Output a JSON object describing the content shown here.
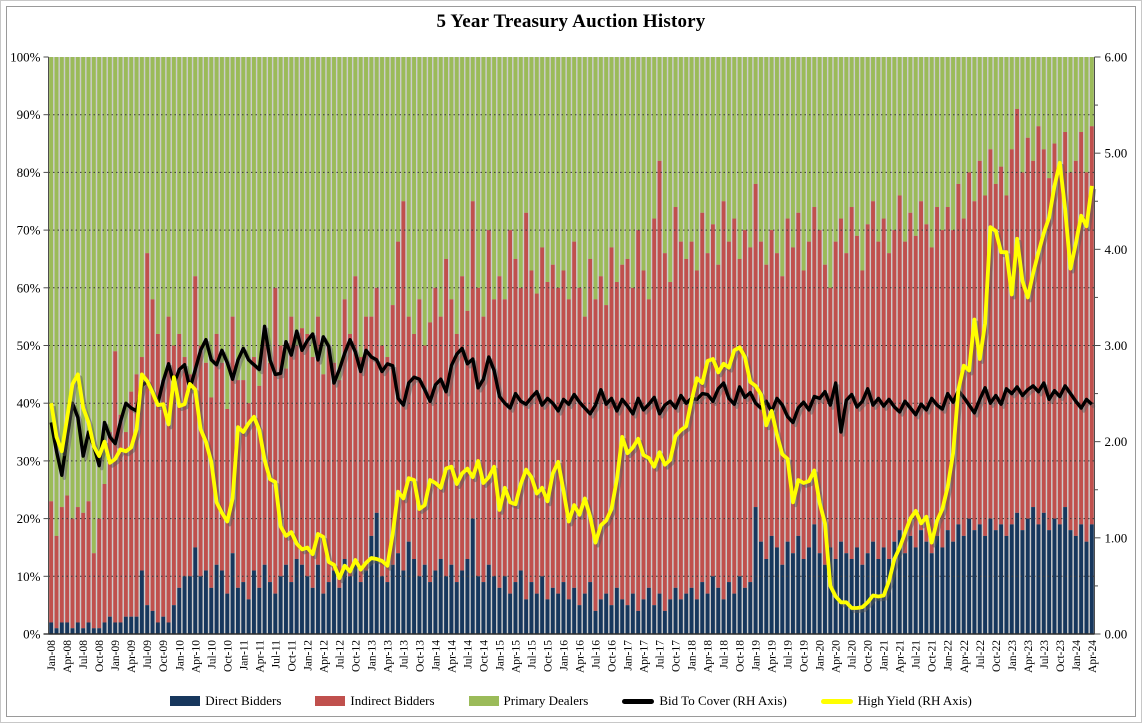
{
  "title": "5 Year Treasury Auction History",
  "legend": {
    "items": [
      {
        "label": "Direct Bidders",
        "swatch": "bar",
        "color": "#17375D"
      },
      {
        "label": "Indirect Bidders",
        "swatch": "bar",
        "color": "#C0504D"
      },
      {
        "label": "Primary Dealers",
        "swatch": "bar",
        "color": "#9BBB59"
      },
      {
        "label": "Bid To Cover (RH Axis)",
        "swatch": "line",
        "color": "#000000"
      },
      {
        "label": "High Yield (RH Axis)",
        "swatch": "line",
        "color": "#FFFF00"
      }
    ]
  },
  "chart_data": {
    "type": "combo: stacked-bar (left axis, % of auction) + line (right axis)",
    "x_start": "Jan-08",
    "x_end": "Apr-24",
    "freq": "monthly",
    "n_points": 196,
    "grid": "horizontal dotted lines every 10%",
    "legend_position": "bottom",
    "plot_bg": "#CDCDCD",
    "left_axis": {
      "min": 0,
      "max": 100,
      "ticks": [
        "0%",
        "10%",
        "20%",
        "30%",
        "40%",
        "50%",
        "60%",
        "70%",
        "80%",
        "90%",
        "100%"
      ]
    },
    "right_axis": {
      "min": 0,
      "max": 6,
      "ticks": [
        "0.00",
        "1.00",
        "2.00",
        "3.00",
        "4.00",
        "5.00",
        "6.00"
      ]
    },
    "x_tick_labels": [
      "Jan-08",
      "Apr-08",
      "Jul-08",
      "Oct-08",
      "Jan-09",
      "Apr-09",
      "Jul-09",
      "Oct-09",
      "Jan-10",
      "Apr-10",
      "Jul-10",
      "Oct-10",
      "Jan-11",
      "Apr-11",
      "Jul-11",
      "Oct-11",
      "Jan-12",
      "Apr-12",
      "Jul-12",
      "Oct-12",
      "Jan-13",
      "Apr-13",
      "Jul-13",
      "Oct-13",
      "Jan-14",
      "Apr-14",
      "Jul-14",
      "Oct-14",
      "Jan-15",
      "Apr-15",
      "Jul-15",
      "Oct-15",
      "Jan-16",
      "Apr-16",
      "Jul-16",
      "Oct-16",
      "Jan-17",
      "Apr-17",
      "Jul-17",
      "Oct-17",
      "Jan-18",
      "Apr-18",
      "Jul-18",
      "Oct-18",
      "Jan-19",
      "Apr-19",
      "Jul-19",
      "Oct-19",
      "Jan-20",
      "Apr-20",
      "Jul-20",
      "Oct-20",
      "Jan-21",
      "Apr-21",
      "Jul-21",
      "Oct-21",
      "Jan-22",
      "Apr-22",
      "Jul-22",
      "Oct-22",
      "Jan-23",
      "Apr-23",
      "Jul-23",
      "Oct-23",
      "Jan-24",
      "Apr-24"
    ],
    "x_tick_every_n_months": 3,
    "series": [
      {
        "name": "Direct Bidders",
        "type": "bar",
        "axis": "left",
        "unit": "%",
        "color": "#17375D",
        "values": [
          2,
          1,
          2,
          2,
          1,
          2,
          1,
          2,
          1,
          1,
          2,
          3,
          2,
          2,
          3,
          3,
          3,
          11,
          5,
          4,
          2,
          3,
          2,
          5,
          8,
          10,
          10,
          15,
          10,
          11,
          8,
          12,
          11,
          7,
          14,
          8,
          9,
          6,
          11,
          8,
          12,
          9,
          7,
          10,
          12,
          9,
          13,
          12,
          10,
          8,
          12,
          7,
          9,
          11,
          8,
          13,
          10,
          12,
          9,
          11,
          17,
          21,
          10,
          9,
          12,
          14,
          11,
          16,
          13,
          10,
          12,
          9,
          11,
          13,
          10,
          12,
          9,
          11,
          13,
          20,
          10,
          9,
          12,
          10,
          8,
          10,
          7,
          9,
          11,
          6,
          9,
          7,
          10,
          6,
          8,
          7,
          9,
          6,
          8,
          5,
          7,
          9,
          4,
          6,
          7,
          5,
          8,
          6,
          5,
          7,
          4,
          6,
          8,
          5,
          7,
          4,
          6,
          8,
          6,
          7,
          8,
          6,
          9,
          7,
          10,
          8,
          6,
          9,
          7,
          10,
          8,
          9,
          22,
          16,
          13,
          17,
          15,
          12,
          16,
          14,
          17,
          13,
          15,
          19,
          14,
          12,
          15,
          13,
          16,
          14,
          13,
          15,
          12,
          14,
          16,
          13,
          15,
          13,
          16,
          18,
          14,
          17,
          15,
          18,
          16,
          14,
          17,
          15,
          18,
          16,
          19,
          17,
          20,
          18,
          19,
          17,
          20,
          18,
          19,
          17,
          19,
          21,
          18,
          20,
          22,
          19,
          21,
          18,
          20,
          19,
          22,
          18,
          17,
          19,
          16,
          19
        ]
      },
      {
        "name": "Indirect Bidders",
        "type": "bar",
        "axis": "left",
        "unit": "%",
        "color": "#C0504D",
        "values": [
          21,
          16,
          20,
          22,
          19,
          20,
          20,
          21,
          13,
          19,
          24,
          32,
          47,
          36,
          32,
          39,
          42,
          37,
          61,
          54,
          50,
          41,
          53,
          45,
          44,
          38,
          35,
          47,
          40,
          36,
          33,
          40,
          36,
          32,
          41,
          36,
          35,
          34,
          37,
          35,
          41,
          38,
          53,
          40,
          34,
          46,
          37,
          41,
          42,
          40,
          43,
          38,
          41,
          36,
          36,
          45,
          42,
          50,
          39,
          44,
          38,
          39,
          40,
          39,
          45,
          54,
          64,
          39,
          39,
          48,
          38,
          45,
          49,
          42,
          55,
          46,
          43,
          51,
          43,
          55,
          50,
          46,
          58,
          48,
          54,
          48,
          63,
          56,
          49,
          67,
          54,
          52,
          57,
          55,
          56,
          53,
          54,
          52,
          60,
          55,
          48,
          56,
          54,
          56,
          50,
          62,
          53,
          58,
          60,
          53,
          66,
          57,
          50,
          67,
          75,
          62,
          55,
          66,
          62,
          58,
          60,
          57,
          64,
          59,
          61,
          56,
          69,
          59,
          65,
          55,
          62,
          58,
          56,
          52,
          51,
          53,
          51,
          50,
          56,
          53,
          56,
          50,
          53,
          55,
          56,
          52,
          45,
          55,
          56,
          52,
          61,
          54,
          51,
          57,
          59,
          55,
          57,
          53,
          54,
          58,
          54,
          56,
          54,
          57,
          55,
          53,
          57,
          55,
          56,
          54,
          59,
          55,
          60,
          57,
          63,
          59,
          64,
          60,
          62,
          59,
          65,
          70,
          62,
          66,
          60,
          69,
          63,
          61,
          65,
          62,
          65,
          62,
          65,
          68,
          64,
          69
        ]
      },
      {
        "name": "Primary Dealers",
        "type": "bar",
        "axis": "left",
        "unit": "%",
        "color": "#9BBB59",
        "values_rule": "100 - Direct Bidders - Indirect Bidders (stack fills to 100%)"
      },
      {
        "name": "Bid To Cover (RH Axis)",
        "type": "line",
        "axis": "right",
        "color": "#000000",
        "values": [
          2.2,
          1.9,
          1.65,
          2.05,
          2.4,
          2.25,
          1.85,
          2.1,
          1.95,
          1.75,
          2.2,
          2.05,
          1.98,
          2.21,
          2.4,
          2.35,
          2.32,
          2.58,
          2.63,
          2.51,
          2.4,
          2.63,
          2.81,
          2.6,
          2.75,
          2.8,
          2.55,
          2.75,
          2.95,
          3.06,
          2.85,
          2.8,
          2.95,
          2.82,
          2.65,
          2.85,
          2.97,
          2.85,
          2.8,
          2.75,
          3.2,
          2.85,
          2.7,
          2.71,
          3.04,
          2.9,
          3.15,
          2.95,
          3.05,
          3.12,
          2.85,
          3.09,
          2.99,
          2.61,
          2.75,
          2.92,
          3.06,
          2.93,
          2.73,
          2.95,
          2.88,
          2.85,
          2.73,
          2.81,
          2.79,
          2.45,
          2.38,
          2.61,
          2.67,
          2.65,
          2.54,
          2.42,
          2.59,
          2.65,
          2.52,
          2.79,
          2.91,
          2.97,
          2.81,
          2.86,
          2.56,
          2.65,
          2.88,
          2.74,
          2.47,
          2.4,
          2.35,
          2.5,
          2.42,
          2.39,
          2.46,
          2.52,
          2.38,
          2.45,
          2.4,
          2.32,
          2.44,
          2.39,
          2.49,
          2.41,
          2.35,
          2.29,
          2.38,
          2.54,
          2.39,
          2.45,
          2.32,
          2.44,
          2.37,
          2.29,
          2.45,
          2.33,
          2.39,
          2.46,
          2.29,
          2.38,
          2.42,
          2.35,
          2.48,
          2.4,
          2.45,
          2.44,
          2.5,
          2.49,
          2.42,
          2.55,
          2.61,
          2.45,
          2.39,
          2.57,
          2.46,
          2.51,
          2.4,
          2.35,
          2.42,
          2.31,
          2.45,
          2.38,
          2.26,
          2.2,
          2.35,
          2.41,
          2.33,
          2.47,
          2.45,
          2.52,
          2.38,
          2.61,
          2.1,
          2.43,
          2.49,
          2.36,
          2.42,
          2.55,
          2.38,
          2.45,
          2.37,
          2.44,
          2.36,
          2.31,
          2.42,
          2.35,
          2.28,
          2.39,
          2.33,
          2.45,
          2.38,
          2.34,
          2.5,
          2.41,
          2.53,
          2.46,
          2.38,
          2.3,
          2.44,
          2.56,
          2.4,
          2.48,
          2.39,
          2.55,
          2.5,
          2.57,
          2.48,
          2.54,
          2.58,
          2.52,
          2.61,
          2.44,
          2.53,
          2.47,
          2.58,
          2.5,
          2.42,
          2.35,
          2.44,
          2.39
        ]
      },
      {
        "name": "High Yield (RH Axis)",
        "type": "line",
        "axis": "right",
        "unit": "%",
        "color": "#FFFF00",
        "values": [
          2.4,
          2.05,
          1.9,
          2.25,
          2.6,
          2.7,
          2.35,
          2.2,
          1.95,
          1.85,
          2.0,
          1.78,
          1.82,
          1.92,
          1.9,
          1.94,
          2.13,
          2.7,
          2.63,
          2.51,
          2.38,
          2.39,
          2.18,
          2.67,
          2.37,
          2.39,
          2.6,
          2.54,
          2.13,
          2.0,
          1.79,
          1.37,
          1.26,
          1.17,
          1.41,
          2.15,
          2.1,
          2.19,
          2.26,
          2.12,
          1.81,
          1.61,
          1.58,
          1.12,
          1.02,
          1.06,
          0.94,
          0.88,
          0.9,
          0.83,
          1.04,
          1.01,
          0.75,
          0.72,
          0.58,
          0.71,
          0.65,
          0.77,
          0.67,
          0.74,
          0.79,
          0.78,
          0.76,
          0.71,
          1.04,
          1.48,
          1.41,
          1.62,
          1.6,
          1.3,
          1.34,
          1.6,
          1.57,
          1.52,
          1.72,
          1.74,
          1.56,
          1.67,
          1.72,
          1.63,
          1.8,
          1.57,
          1.63,
          1.74,
          1.29,
          1.52,
          1.37,
          1.35,
          1.56,
          1.71,
          1.63,
          1.46,
          1.52,
          1.38,
          1.67,
          1.79,
          1.49,
          1.17,
          1.34,
          1.24,
          1.41,
          1.22,
          0.95,
          1.13,
          1.18,
          1.3,
          1.61,
          2.05,
          1.88,
          1.94,
          2.03,
          1.86,
          1.83,
          1.74,
          1.89,
          1.76,
          1.81,
          2.06,
          2.12,
          2.16,
          2.43,
          2.66,
          2.61,
          2.84,
          2.86,
          2.72,
          2.81,
          2.77,
          2.95,
          2.98,
          2.88,
          2.62,
          2.58,
          2.49,
          2.17,
          2.32,
          2.07,
          1.87,
          1.82,
          1.37,
          1.6,
          1.57,
          1.59,
          1.7,
          1.36,
          1.15,
          0.5,
          0.39,
          0.33,
          0.33,
          0.27,
          0.27,
          0.28,
          0.33,
          0.4,
          0.39,
          0.4,
          0.55,
          0.78,
          0.9,
          1.05,
          1.2,
          1.28,
          1.15,
          1.22,
          0.95,
          1.18,
          1.3,
          1.53,
          1.88,
          2.54,
          2.79,
          2.74,
          3.27,
          2.86,
          3.23,
          4.23,
          4.19,
          3.97,
          3.97,
          3.53,
          4.11,
          3.67,
          3.5,
          3.75,
          3.97,
          4.17,
          4.33,
          4.66,
          4.9,
          4.42,
          3.8,
          4.06,
          4.35,
          4.24,
          4.66
        ]
      }
    ]
  }
}
